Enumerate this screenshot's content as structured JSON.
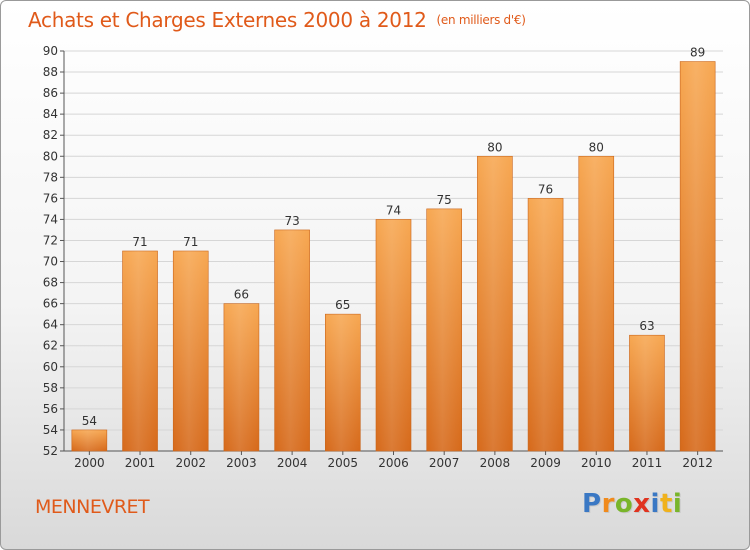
{
  "header": {
    "title": "Achats et Charges Externes 2000 à 2012",
    "unit": "(en milliers d'€)"
  },
  "footer": {
    "commune": "MENNEVRET",
    "logo_parts": [
      "P",
      "r",
      "o",
      "x",
      "i",
      "t",
      "i"
    ]
  },
  "colors": {
    "accent": "#e05a1a",
    "bar_light": "#f6a24e",
    "bar_dark": "#d9701f",
    "grid": "#d6d6d6"
  },
  "chart_data": {
    "type": "bar",
    "title": "Achats et Charges Externes 2000 à 2012",
    "subtitle": "(en milliers d'€)",
    "xlabel": "",
    "ylabel": "",
    "categories": [
      "2000",
      "2001",
      "2002",
      "2003",
      "2004",
      "2005",
      "2006",
      "2007",
      "2008",
      "2009",
      "2010",
      "2011",
      "2012"
    ],
    "values": [
      54,
      71,
      71,
      66,
      73,
      65,
      74,
      75,
      80,
      76,
      80,
      63,
      89
    ],
    "ylim": [
      52,
      90
    ],
    "yticks": [
      52,
      54,
      56,
      58,
      60,
      62,
      64,
      66,
      68,
      70,
      72,
      74,
      76,
      78,
      80,
      82,
      84,
      86,
      88,
      90
    ],
    "grid": true,
    "legend": "none"
  }
}
